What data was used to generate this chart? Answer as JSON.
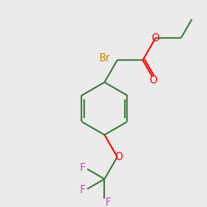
{
  "bg_color": "#ebebeb",
  "bond_color": "#3a7a3a",
  "O_color": "#ff0000",
  "Br_color": "#cc8800",
  "F_color": "#cc44cc",
  "line_width": 1.6,
  "font_size": 10.5,
  "figsize": [
    3.0,
    3.0
  ],
  "dpi": 100,
  "xlim": [
    0,
    10
  ],
  "ylim": [
    0,
    10
  ]
}
